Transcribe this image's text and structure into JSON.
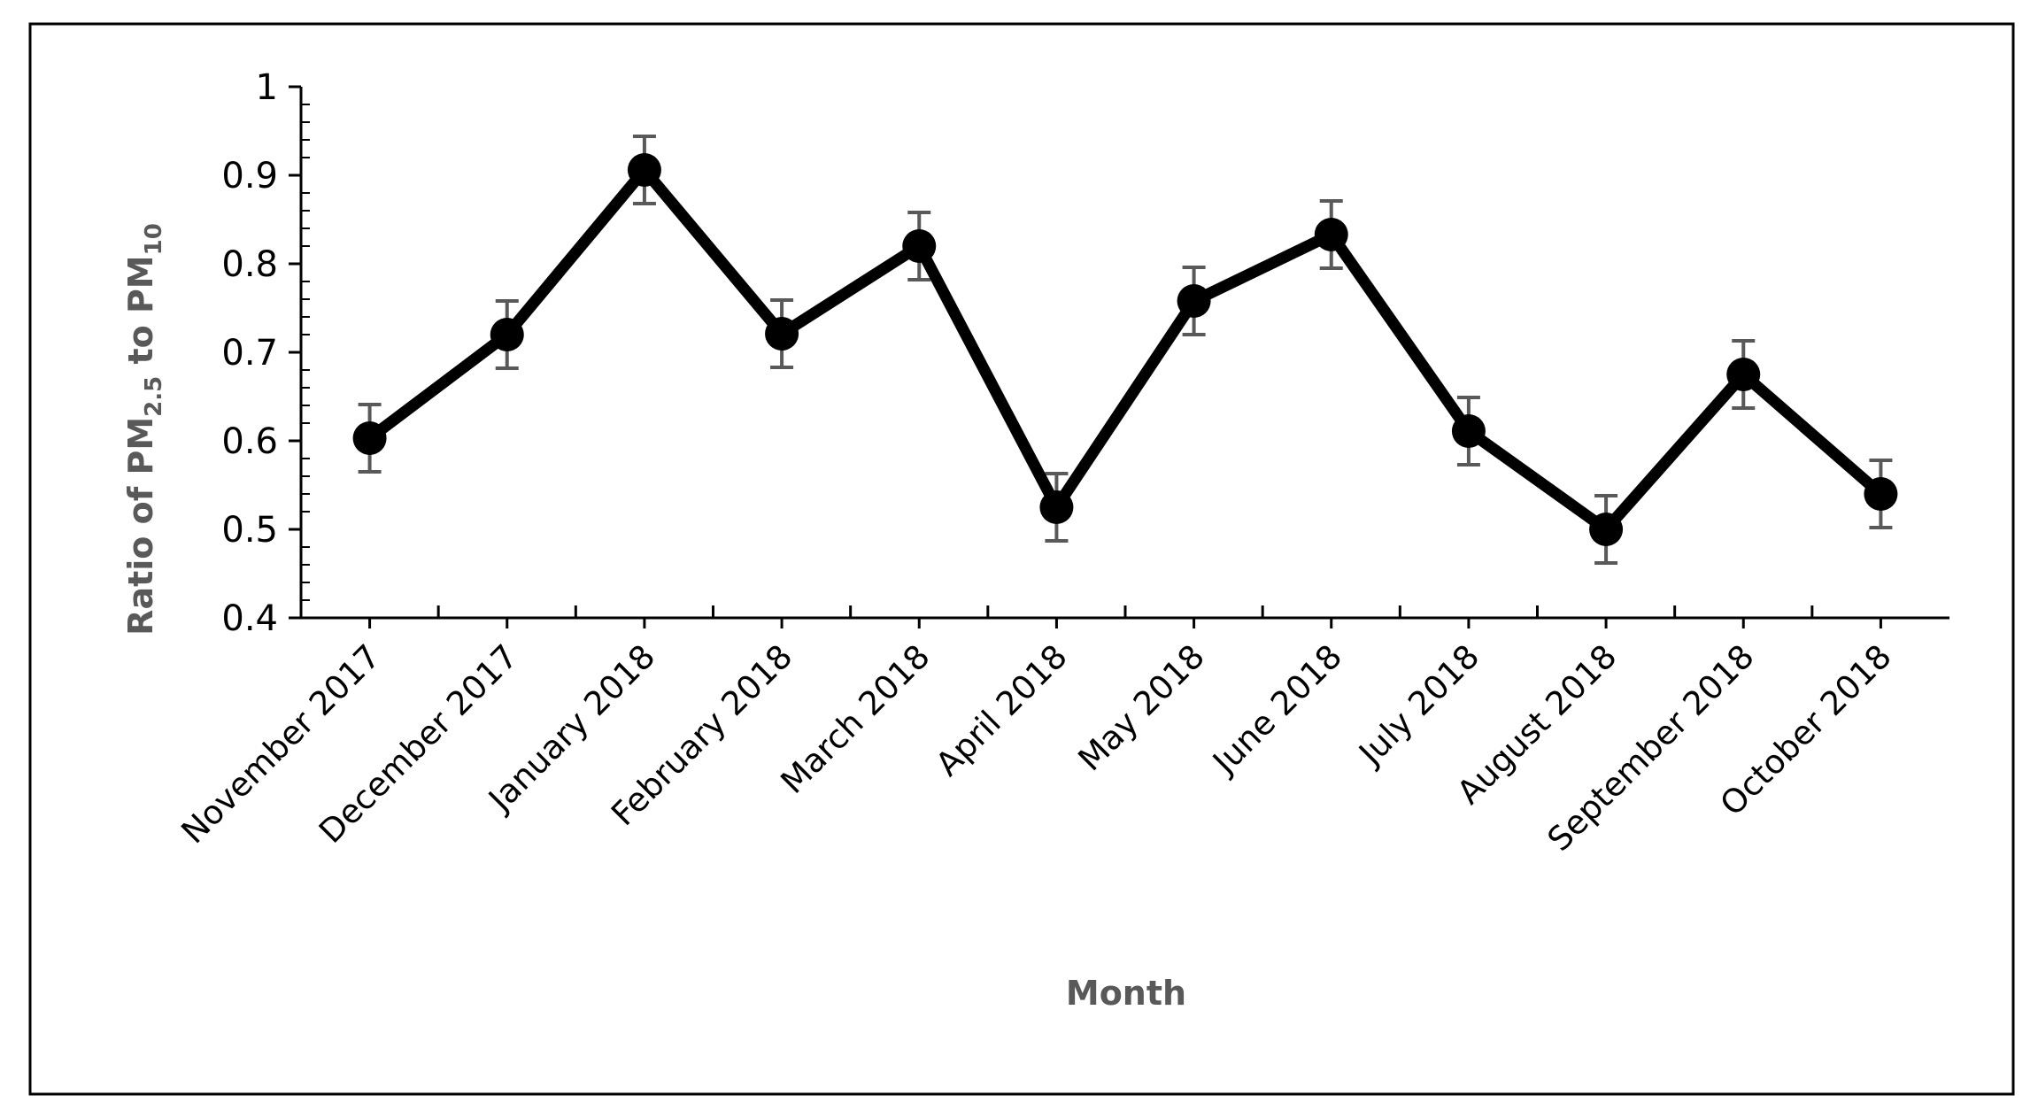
{
  "chart_data": {
    "type": "line",
    "title": "",
    "xlabel": "Month",
    "ylabel_parts": {
      "prefix": "Ratio of PM",
      "sub1": "2.5",
      "middle": " to PM",
      "sub2": "10"
    },
    "categories": [
      "November 2017",
      "December 2017",
      "January 2018",
      "February 2018",
      "March 2018",
      "April 2018",
      "May 2018",
      "June 2018",
      "July 2018",
      "August 2018",
      "September 2018",
      "October 2018"
    ],
    "series": [
      {
        "values": [
          0.603,
          0.72,
          0.906,
          0.721,
          0.82,
          0.525,
          0.758,
          0.833,
          0.611,
          0.5,
          0.675,
          0.54
        ],
        "error": [
          0.038,
          0.038,
          0.038,
          0.038,
          0.038,
          0.038,
          0.038,
          0.038,
          0.038,
          0.038,
          0.038,
          0.038
        ]
      }
    ],
    "ylim": [
      0.4,
      1.0
    ],
    "yticks": [
      "0.4",
      "0.5",
      "0.6",
      "0.7",
      "0.8",
      "0.9",
      "1"
    ],
    "grid": false,
    "legend": "none",
    "colors": {
      "line": "#000000",
      "marker": "#000000",
      "errorbar": "#595959",
      "axis": "#000000",
      "axis_title": "#595959",
      "frame": "#000000"
    }
  }
}
